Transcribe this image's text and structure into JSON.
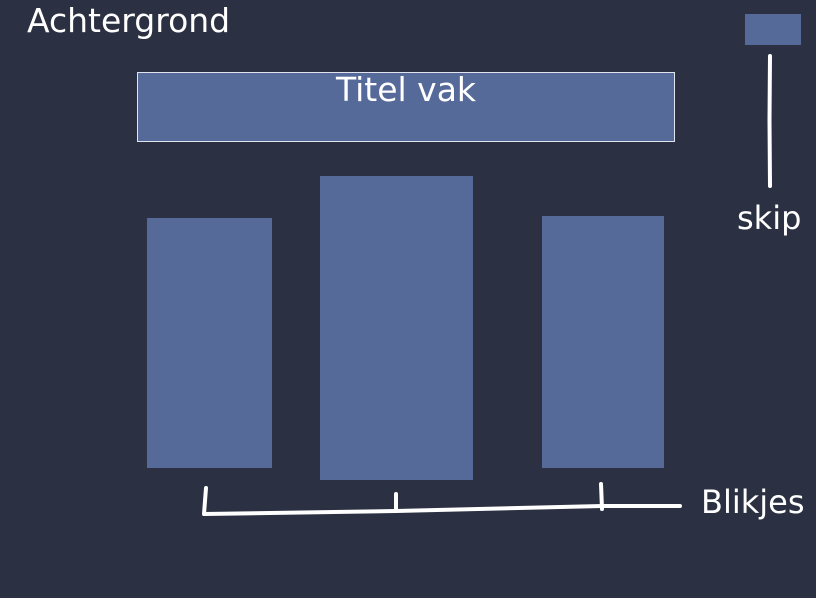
{
  "labels": {
    "background": "Achtergrond",
    "title_box": "Titel vak",
    "skip": "skip",
    "cans": "Blikjes"
  },
  "colors": {
    "background": "#2b3142",
    "box_fill": "#566a9a",
    "title_border": "#dfe4ef",
    "ink": "#ffffff"
  }
}
